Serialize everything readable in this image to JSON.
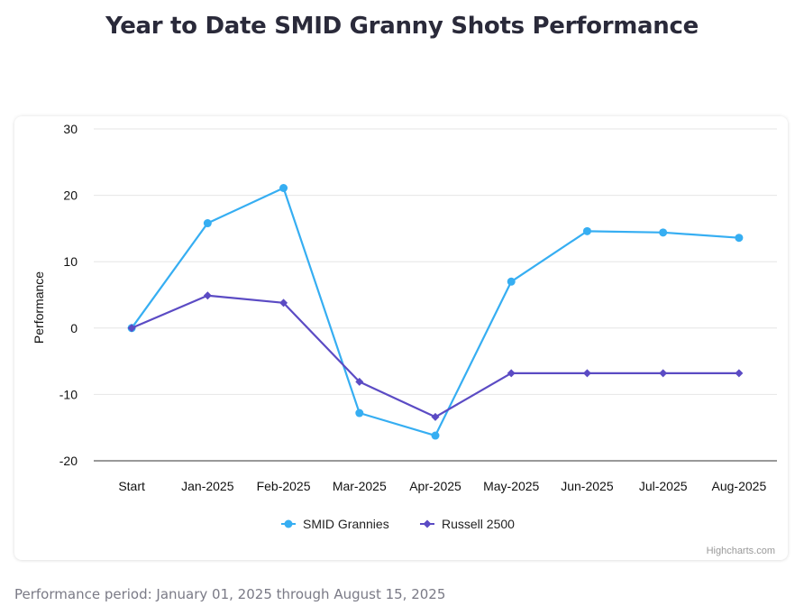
{
  "title": "Year to Date SMID Granny Shots Performance",
  "footnote": "Performance period: January 01, 2025 through August 15, 2025",
  "credits": "Highcharts.com",
  "chart_data": {
    "type": "line",
    "title": "Year to Date SMID Granny Shots Performance",
    "xlabel": "",
    "ylabel": "Performance",
    "ylim": [
      -20,
      30
    ],
    "yticks": [
      -20,
      -10,
      0,
      10,
      20,
      30
    ],
    "grid": true,
    "legend_position": "bottom-center",
    "categories": [
      "Start",
      "Jan-2025",
      "Feb-2025",
      "Mar-2025",
      "Apr-2025",
      "May-2025",
      "Jun-2025",
      "Jul-2025",
      "Aug-2025"
    ],
    "series": [
      {
        "name": "SMID Grannies",
        "color": "#36aef2",
        "marker": "circle",
        "values": [
          0,
          15.8,
          21.1,
          -12.8,
          -16.2,
          7.0,
          14.6,
          14.4,
          13.6
        ]
      },
      {
        "name": "Russell 2500",
        "color": "#5b4bc4",
        "marker": "diamond",
        "values": [
          0,
          4.9,
          3.8,
          -8.1,
          -13.4,
          -6.8,
          -6.8,
          -6.8,
          -6.8
        ]
      }
    ]
  }
}
